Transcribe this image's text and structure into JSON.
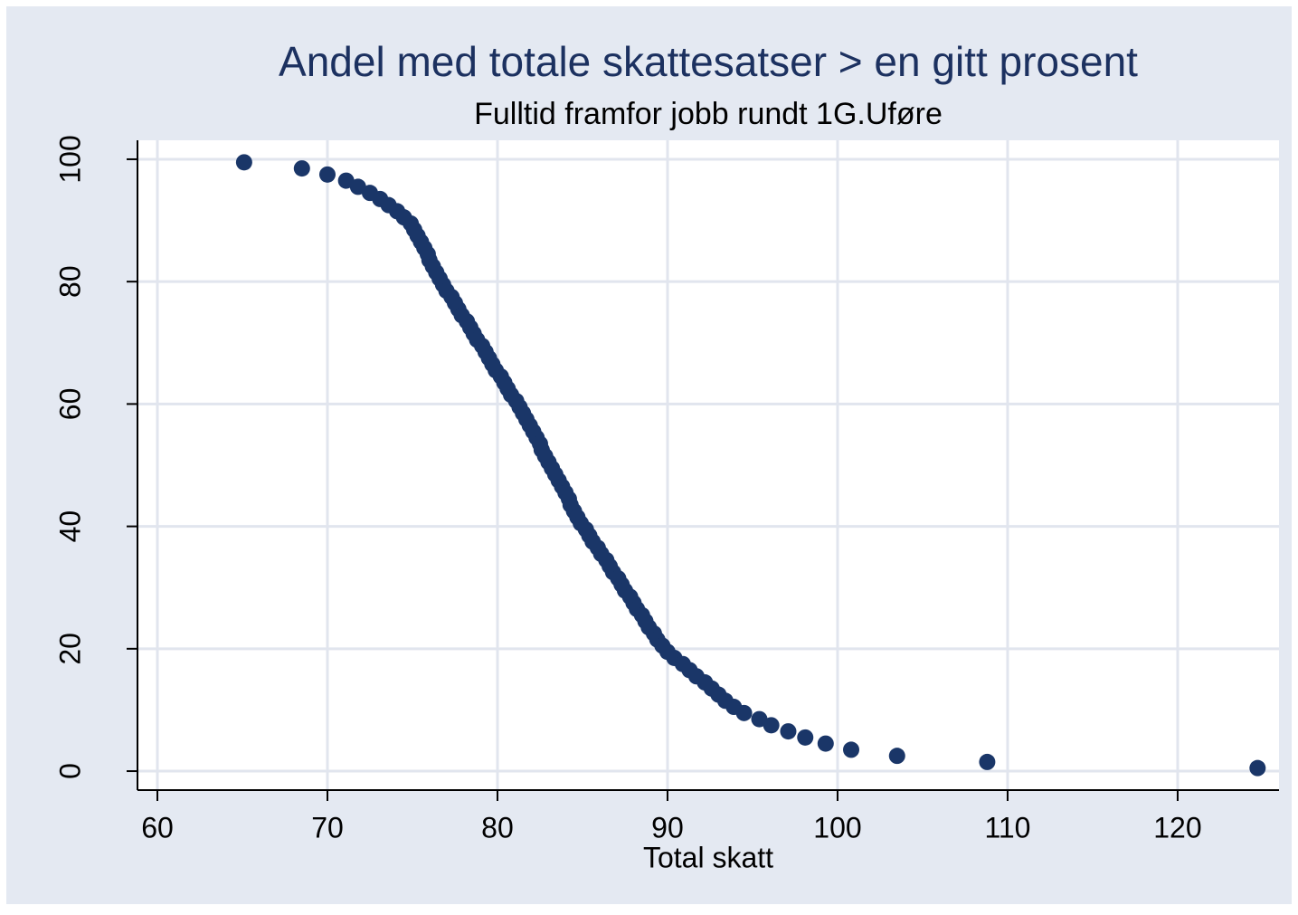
{
  "chart_data": {
    "type": "scatter",
    "title": "Andel med totale skattesatser > en gitt prosent",
    "subtitle": "Fulltid framfor jobb rundt 1G.Uføre",
    "x_label": "Total skatt",
    "color": "#1a3668",
    "grid": true,
    "xlim": [
      58.83,
      125.96
    ],
    "ylim": [
      -3.1,
      103.1
    ],
    "xticks": [
      60,
      70,
      80,
      90,
      100,
      110,
      120
    ],
    "yticks": [
      0,
      20,
      40,
      60,
      80,
      100
    ],
    "x": [
      65.1,
      68.5,
      70.0,
      71.1,
      71.8,
      72.5,
      73.1,
      73.6,
      74.1,
      74.5,
      74.9,
      75.1,
      75.3,
      75.5,
      75.7,
      75.9,
      76.0,
      76.2,
      76.4,
      76.6,
      76.8,
      77.0,
      77.3,
      77.5,
      77.7,
      77.9,
      78.2,
      78.4,
      78.6,
      78.8,
      79.1,
      79.3,
      79.5,
      79.7,
      79.9,
      80.2,
      80.4,
      80.6,
      80.8,
      81.1,
      81.3,
      81.5,
      81.7,
      81.9,
      82.1,
      82.3,
      82.5,
      82.6,
      82.8,
      83.0,
      83.2,
      83.4,
      83.6,
      83.8,
      84.0,
      84.2,
      84.3,
      84.5,
      84.7,
      84.9,
      85.2,
      85.4,
      85.6,
      85.9,
      86.1,
      86.4,
      86.6,
      86.8,
      87.1,
      87.3,
      87.5,
      87.8,
      88.0,
      88.2,
      88.5,
      88.7,
      88.9,
      89.2,
      89.4,
      89.7,
      90.0,
      90.4,
      90.9,
      91.3,
      91.7,
      92.2,
      92.6,
      93.0,
      93.4,
      93.9,
      94.5,
      95.4,
      96.1,
      97.1,
      98.1,
      99.3,
      100.8,
      103.5,
      108.8,
      124.7
    ],
    "values": [
      99.5,
      98.5,
      97.5,
      96.5,
      95.5,
      94.5,
      93.5,
      92.5,
      91.5,
      90.5,
      89.5,
      88.5,
      87.5,
      86.5,
      85.5,
      84.5,
      83.5,
      82.5,
      81.5,
      80.5,
      79.5,
      78.5,
      77.5,
      76.5,
      75.5,
      74.5,
      73.5,
      72.5,
      71.5,
      70.5,
      69.5,
      68.5,
      67.5,
      66.5,
      65.5,
      64.5,
      63.5,
      62.5,
      61.5,
      60.5,
      59.5,
      58.5,
      57.5,
      56.5,
      55.5,
      54.5,
      53.5,
      52.5,
      51.5,
      50.5,
      49.5,
      48.5,
      47.5,
      46.5,
      45.5,
      44.5,
      43.5,
      42.5,
      41.5,
      40.5,
      39.5,
      38.5,
      37.5,
      36.5,
      35.5,
      34.5,
      33.5,
      32.5,
      31.5,
      30.5,
      29.5,
      28.5,
      27.5,
      26.5,
      25.5,
      24.5,
      23.5,
      22.5,
      21.5,
      20.5,
      19.5,
      18.5,
      17.5,
      16.5,
      15.5,
      14.5,
      13.5,
      12.5,
      11.5,
      10.5,
      9.5,
      8.5,
      7.5,
      6.5,
      5.5,
      4.5,
      3.5,
      2.5,
      1.5,
      0.5
    ]
  }
}
